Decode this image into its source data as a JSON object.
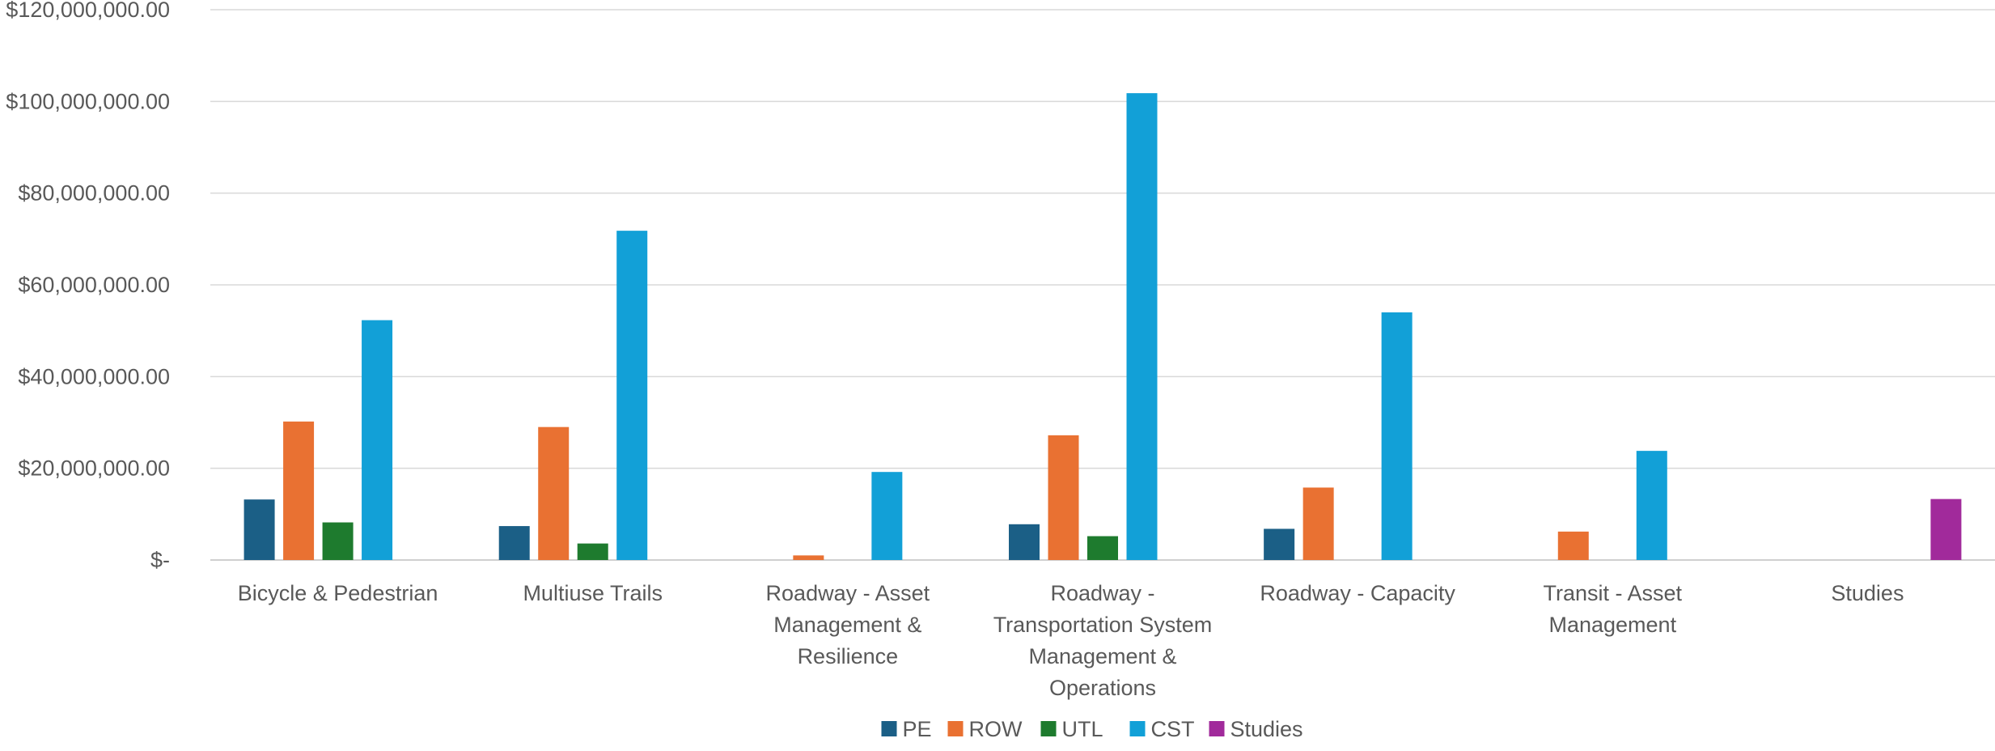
{
  "chart_data": {
    "type": "bar",
    "title": "",
    "xlabel": "",
    "ylabel": "",
    "ylim": [
      0,
      120000000
    ],
    "yticks": [
      0,
      20000000,
      40000000,
      60000000,
      80000000,
      100000000,
      120000000
    ],
    "ytick_labels": [
      "$-",
      "$20,000,000.00",
      "$40,000,000.00",
      "$60,000,000.00",
      "$80,000,000.00",
      "$100,000,000.00",
      "$120,000,000.00"
    ],
    "grid": true,
    "legend_position": "bottom",
    "categories": [
      [
        "Bicycle & Pedestrian"
      ],
      [
        "Multiuse Trails"
      ],
      [
        "Roadway - Asset",
        "Management &",
        "Resilience"
      ],
      [
        "Roadway -",
        "Transportation System",
        "Management &",
        "Operations"
      ],
      [
        "Roadway - Capacity"
      ],
      [
        "Transit - Asset",
        "Management"
      ],
      [
        "Studies"
      ]
    ],
    "series": [
      {
        "name": "PE",
        "color": "#1b5f86",
        "values": [
          13200000,
          7400000,
          0,
          7800000,
          6800000,
          0,
          0
        ]
      },
      {
        "name": "ROW",
        "color": "#e97132",
        "values": [
          30200000,
          29000000,
          1000000,
          27200000,
          15800000,
          6200000,
          0
        ]
      },
      {
        "name": "UTL",
        "color": "#1e7b2e",
        "values": [
          8200000,
          3600000,
          0,
          5200000,
          0,
          0,
          0
        ]
      },
      {
        "name": "CST",
        "color": "#12a0d7",
        "values": [
          52300000,
          71800000,
          19200000,
          101800000,
          54000000,
          23800000,
          0
        ]
      },
      {
        "name": "Studies",
        "color": "#a12a9b",
        "values": [
          0,
          0,
          0,
          0,
          0,
          0,
          13300000
        ]
      }
    ]
  }
}
